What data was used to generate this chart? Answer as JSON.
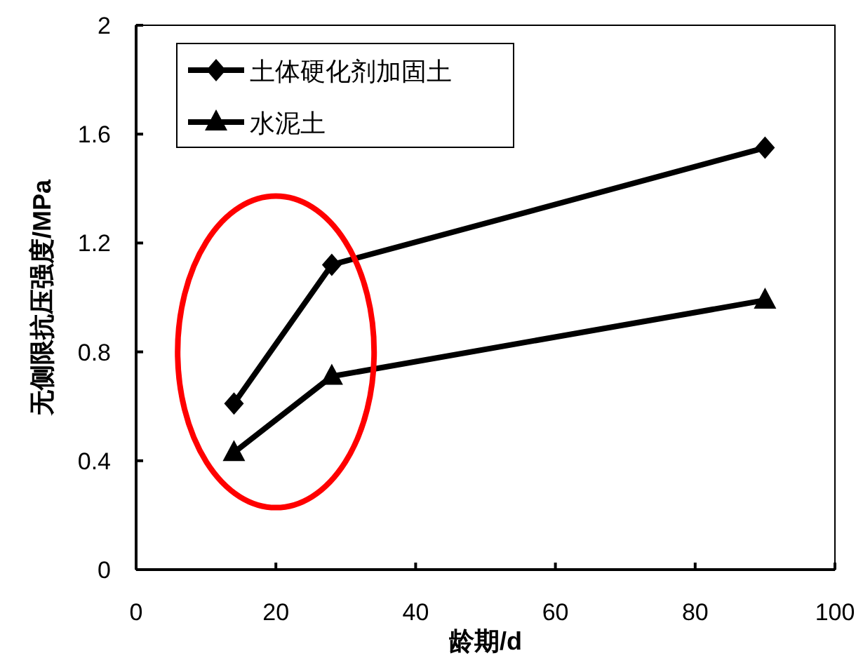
{
  "chart_data": {
    "type": "line",
    "xlabel": "龄期/d",
    "ylabel": "无侧限抗压强度/MPa",
    "x": [
      14,
      28,
      90
    ],
    "series": [
      {
        "name": "土体硬化剂加固土",
        "color": "#000000",
        "marker": "diamond",
        "values": [
          0.61,
          1.12,
          1.55
        ]
      },
      {
        "name": "水泥土",
        "color": "#000000",
        "marker": "triangle",
        "values": [
          0.43,
          0.71,
          0.99
        ]
      }
    ],
    "xlim": [
      0,
      100
    ],
    "xticks": [
      0,
      20,
      40,
      60,
      80,
      100
    ],
    "ylim": [
      0,
      2
    ],
    "yticks": [
      0,
      0.4,
      0.8,
      1.2,
      1.6,
      2
    ],
    "grid": false,
    "legend": "top left",
    "line_style": "solid"
  }
}
